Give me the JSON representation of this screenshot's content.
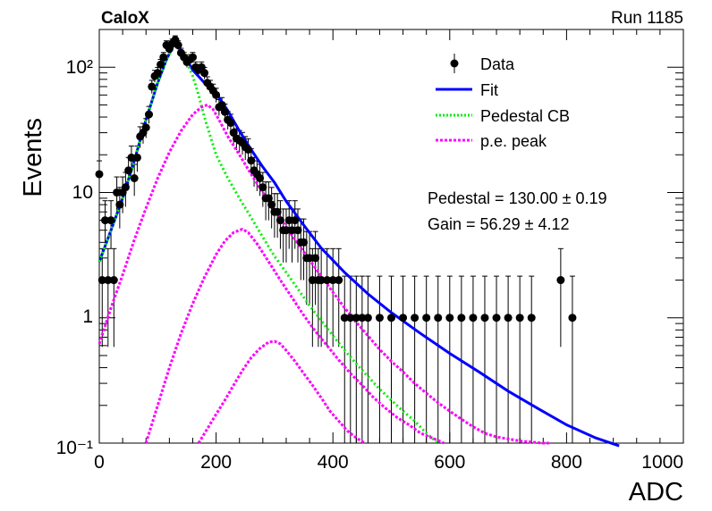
{
  "header": {
    "left_label": "CaloX",
    "right_label": "Run 1185"
  },
  "annotations": {
    "pedestal": "Pedestal = 130.00 ± 0.19",
    "gain": "Gain = 56.29 ± 4.12"
  },
  "colors": {
    "data": "#000000",
    "fit": "#0000ff",
    "pedestal": "#00ee00",
    "pe": "#ff00ff"
  },
  "chart_data": {
    "type": "scatter",
    "xlabel": "ADC",
    "ylabel": "Events",
    "xlim": [
      0,
      1000
    ],
    "ylim": [
      0.1,
      200
    ],
    "yscale": "log",
    "x_ticks": [
      "0",
      "200",
      "400",
      "600",
      "800",
      "1000"
    ],
    "y_ticks": [
      "10⁻¹",
      "1",
      "10",
      "10²"
    ],
    "legend_position": "top-right",
    "legend": [
      "Data",
      "Fit",
      "Pedestal CB",
      "p.e. peak"
    ],
    "series": [
      {
        "name": "Data",
        "style": "points",
        "x": [
          0,
          5,
          10,
          15,
          20,
          25,
          30,
          35,
          40,
          45,
          50,
          55,
          60,
          65,
          70,
          75,
          80,
          85,
          90,
          95,
          100,
          105,
          110,
          115,
          120,
          125,
          130,
          135,
          140,
          145,
          150,
          155,
          160,
          165,
          170,
          175,
          180,
          185,
          190,
          195,
          200,
          205,
          210,
          215,
          220,
          225,
          230,
          235,
          240,
          245,
          250,
          255,
          260,
          265,
          270,
          275,
          280,
          285,
          290,
          295,
          300,
          305,
          310,
          315,
          320,
          325,
          330,
          335,
          340,
          345,
          350,
          355,
          360,
          365,
          370,
          375,
          380,
          390,
          400,
          410,
          420,
          430,
          440,
          450,
          460,
          480,
          500,
          520,
          540,
          560,
          580,
          600,
          620,
          640,
          660,
          680,
          700,
          720,
          740,
          790,
          810
        ],
        "y": [
          14,
          2,
          6,
          2,
          6,
          2,
          10,
          8,
          10,
          11,
          15,
          19,
          13,
          19,
          28,
          30,
          33,
          42,
          70,
          85,
          90,
          105,
          120,
          150,
          140,
          155,
          165,
          150,
          130,
          120,
          110,
          115,
          120,
          100,
          95,
          100,
          90,
          75,
          70,
          65,
          60,
          48,
          50,
          44,
          38,
          36,
          30,
          27,
          26,
          25,
          23,
          22,
          18,
          15,
          14,
          13,
          11,
          9,
          9,
          8,
          7,
          7,
          6,
          5,
          5,
          6,
          5,
          6,
          5,
          4,
          4,
          3,
          3,
          2,
          3,
          2,
          2,
          2,
          2,
          2,
          1,
          1,
          1,
          1,
          1,
          1,
          1,
          1,
          1,
          1,
          1,
          1,
          1,
          1,
          1,
          1,
          1,
          1,
          1,
          2,
          1
        ]
      },
      {
        "name": "Fit",
        "style": "line",
        "x": [
          0,
          20,
          40,
          60,
          80,
          100,
          115,
          130,
          145,
          160,
          180,
          200,
          220,
          240,
          260,
          280,
          300,
          320,
          350,
          380,
          420,
          460,
          500,
          550,
          600,
          650,
          700,
          750,
          800,
          850,
          890
        ],
        "y": [
          2.8,
          5,
          9,
          18,
          38,
          75,
          115,
          160,
          125,
          95,
          75,
          62,
          45,
          31,
          22,
          16,
          12,
          8.5,
          5.5,
          3.6,
          2.3,
          1.55,
          1.1,
          0.75,
          0.52,
          0.37,
          0.26,
          0.19,
          0.14,
          0.11,
          0.095
        ]
      },
      {
        "name": "Pedestal CB",
        "style": "dotted-line",
        "x": [
          0,
          20,
          40,
          60,
          80,
          100,
          115,
          130,
          140,
          150,
          160,
          170,
          180,
          200,
          220,
          240,
          260,
          280,
          300,
          320,
          340,
          360,
          380,
          400,
          420,
          440,
          460,
          480,
          500,
          520,
          540,
          560,
          580
        ],
        "y": [
          2.8,
          5,
          9,
          18,
          38,
          75,
          115,
          155,
          140,
          110,
          85,
          60,
          40,
          20,
          13,
          9,
          6.3,
          4.4,
          3.1,
          2.3,
          1.7,
          1.25,
          0.95,
          0.72,
          0.55,
          0.43,
          0.34,
          0.27,
          0.22,
          0.18,
          0.15,
          0.12,
          0.1
        ]
      },
      {
        "name": "p.e. peak",
        "style": "dotted-line",
        "x": [
          0,
          20,
          40,
          60,
          80,
          100,
          120,
          140,
          160,
          175,
          185,
          195,
          205,
          220,
          240,
          260,
          280,
          300,
          320,
          340,
          360,
          380,
          400,
          420,
          440,
          460,
          480,
          500,
          520,
          540,
          560,
          580,
          600,
          620,
          640,
          660,
          680,
          700,
          720,
          740,
          760,
          770
        ],
        "y": [
          0.62,
          1.2,
          2.2,
          4.2,
          7.5,
          13,
          21,
          31,
          42,
          48,
          50,
          46,
          38,
          28,
          20,
          14,
          10,
          7.3,
          5.3,
          3.9,
          2.9,
          2.15,
          1.6,
          1.2,
          0.92,
          0.72,
          0.56,
          0.45,
          0.37,
          0.3,
          0.25,
          0.21,
          0.18,
          0.155,
          0.135,
          0.12,
          0.112,
          0.108,
          0.104,
          0.102,
          0.1,
          0.1
        ]
      },
      {
        "name": "p.e. peak",
        "style": "dotted-line",
        "x": [
          80,
          100,
          120,
          140,
          160,
          180,
          200,
          215,
          230,
          245,
          255,
          270,
          290,
          310,
          330,
          350,
          370,
          390,
          410,
          430,
          450,
          470,
          490,
          510,
          530,
          550,
          570,
          590
        ],
        "y": [
          0.1,
          0.2,
          0.4,
          0.75,
          1.3,
          2.1,
          3.2,
          4.1,
          4.8,
          5.1,
          4.8,
          3.9,
          2.8,
          2.0,
          1.45,
          1.05,
          0.78,
          0.6,
          0.46,
          0.36,
          0.29,
          0.23,
          0.19,
          0.16,
          0.14,
          0.12,
          0.11,
          0.1
        ]
      },
      {
        "name": "p.e. peak",
        "style": "dotted-line",
        "x": [
          170,
          185,
          200,
          215,
          230,
          245,
          260,
          275,
          290,
          300,
          310,
          320,
          335,
          350,
          365,
          380,
          395,
          410,
          425,
          440,
          455
        ],
        "y": [
          0.1,
          0.13,
          0.17,
          0.22,
          0.29,
          0.38,
          0.48,
          0.57,
          0.64,
          0.65,
          0.62,
          0.55,
          0.45,
          0.36,
          0.29,
          0.23,
          0.18,
          0.15,
          0.125,
          0.11,
          0.1
        ]
      }
    ]
  }
}
